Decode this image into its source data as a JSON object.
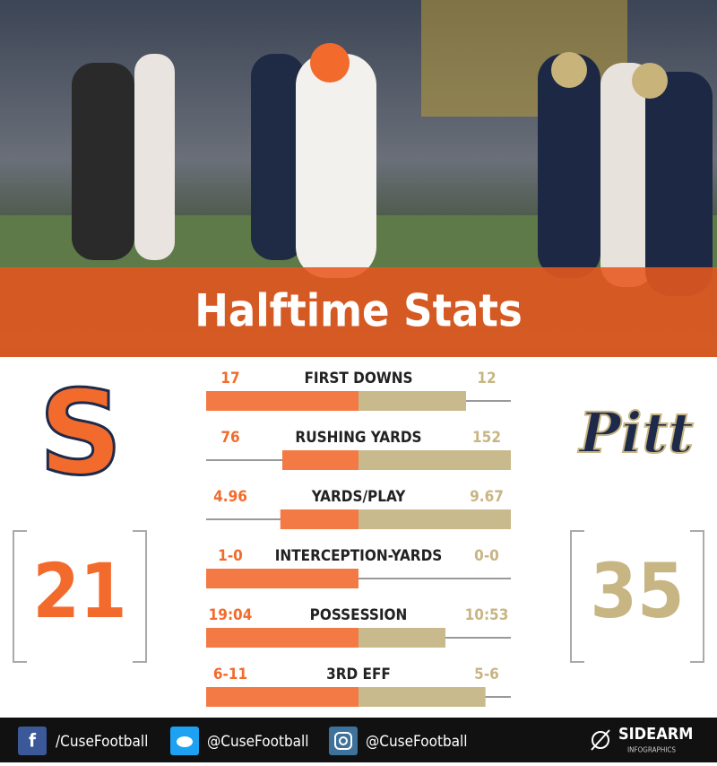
{
  "header": {
    "title": "Halftime Stats"
  },
  "teams": [
    {
      "logo": "S"
    },
    {
      "logo": "Pitt"
    }
  ],
  "scores": [
    21,
    35
  ],
  "stats": [
    {
      "label": "FIRST DOWNS",
      "left": 17,
      "right": 12
    },
    {
      "label": "RUSHING YARDS",
      "left": 76,
      "right": 152
    },
    {
      "label": "YARDS/PLAY",
      "left": 4.96,
      "right": 9.67
    },
    {
      "label": "INTERCEPTION-YARDS",
      "left": "1-0",
      "right": "0-0",
      "left_value": 1,
      "right_value": 0
    },
    {
      "label": "POSSESSION",
      "left": "19:04",
      "right": "10:53",
      "left_value": 19.07,
      "right_value": 10.88
    },
    {
      "label": "3RD EFF",
      "left": "6-11",
      "right": "5-6",
      "left_value": 6,
      "right_value": 5
    }
  ],
  "footer": {
    "handles": [
      "/CuseFootball",
      "@CuseFootball",
      "@CuseFootball"
    ],
    "brand": "SIDEARM",
    "brand_sub": "INFOGRAPHICS"
  }
}
